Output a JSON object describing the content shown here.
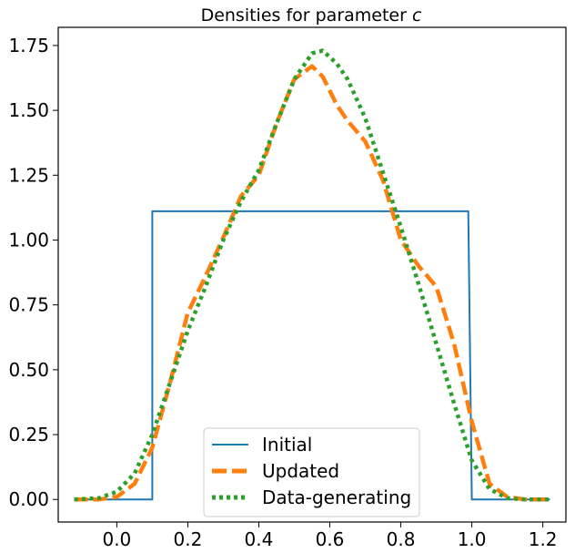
{
  "chart_data": {
    "type": "line",
    "title": "Densities for parameter ",
    "title_var": "c",
    "xlabel": "",
    "ylabel": "",
    "xlim": [
      -0.165,
      1.265
    ],
    "ylim": [
      -0.087,
      1.82
    ],
    "xticks": [
      0.0,
      0.2,
      0.4,
      0.6,
      0.8,
      1.0,
      1.2
    ],
    "xtick_labels": [
      "0.0",
      "0.2",
      "0.4",
      "0.6",
      "0.8",
      "1.0",
      "1.2"
    ],
    "yticks": [
      0.0,
      0.25,
      0.5,
      0.75,
      1.0,
      1.25,
      1.5,
      1.75
    ],
    "ytick_labels": [
      "0.00",
      "0.25",
      "0.50",
      "0.75",
      "1.00",
      "1.25",
      "1.50",
      "1.75"
    ],
    "grid": false,
    "legend_position": "bottom-center",
    "series": [
      {
        "name": "Initial",
        "color": "#1f77b4",
        "style": "solid",
        "x": [
          -0.12,
          0.1,
          0.1,
          0.15,
          0.3,
          0.45,
          0.6,
          0.75,
          0.9,
          0.99,
          1.0,
          1.22
        ],
        "y": [
          0.0,
          0.0,
          1.111,
          1.111,
          1.111,
          1.111,
          1.111,
          1.111,
          1.111,
          1.111,
          0.0,
          0.0
        ]
      },
      {
        "name": "Updated",
        "color": "#ff7f0e",
        "style": "dashed",
        "x": [
          -0.12,
          -0.05,
          0.0,
          0.05,
          0.1,
          0.15,
          0.2,
          0.25,
          0.3,
          0.35,
          0.4,
          0.45,
          0.5,
          0.55,
          0.58,
          0.62,
          0.65,
          0.7,
          0.75,
          0.8,
          0.85,
          0.9,
          0.95,
          1.0,
          1.05,
          1.1,
          1.15,
          1.22
        ],
        "y": [
          0.0,
          0.0,
          0.01,
          0.06,
          0.2,
          0.45,
          0.72,
          0.86,
          1.01,
          1.17,
          1.25,
          1.45,
          1.62,
          1.67,
          1.63,
          1.52,
          1.46,
          1.38,
          1.23,
          1.0,
          0.9,
          0.82,
          0.6,
          0.3,
          0.06,
          0.01,
          0.0,
          0.0
        ]
      },
      {
        "name": "Data-generating",
        "color": "#2ca02c",
        "style": "dotted",
        "x": [
          -0.12,
          -0.05,
          0.0,
          0.05,
          0.1,
          0.15,
          0.2,
          0.25,
          0.3,
          0.35,
          0.4,
          0.45,
          0.5,
          0.55,
          0.58,
          0.62,
          0.65,
          0.7,
          0.75,
          0.8,
          0.85,
          0.9,
          0.95,
          1.0,
          1.05,
          1.1,
          1.15,
          1.22
        ],
        "y": [
          0.0,
          0.005,
          0.03,
          0.1,
          0.25,
          0.45,
          0.65,
          0.82,
          1.0,
          1.15,
          1.27,
          1.45,
          1.62,
          1.72,
          1.73,
          1.68,
          1.62,
          1.47,
          1.26,
          1.05,
          0.83,
          0.6,
          0.37,
          0.15,
          0.04,
          0.005,
          0.0,
          0.0
        ]
      }
    ]
  }
}
